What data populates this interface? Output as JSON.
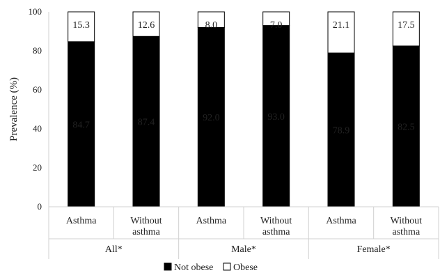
{
  "chart_data": {
    "type": "bar",
    "stacked": true,
    "ylabel": "Prevalence (%)",
    "ylim": [
      0,
      100
    ],
    "yticks": [
      0,
      20,
      40,
      60,
      80,
      100
    ],
    "grid": false,
    "groups": [
      {
        "label": "All*",
        "categories": [
          [
            "Asthma"
          ],
          [
            "Without",
            "asthma"
          ]
        ]
      },
      {
        "label": "Male*",
        "categories": [
          [
            "Asthma"
          ],
          [
            "Without",
            "asthma"
          ]
        ]
      },
      {
        "label": "Female*",
        "categories": [
          [
            "Asthma"
          ],
          [
            "Without",
            "asthma"
          ]
        ]
      }
    ],
    "series": [
      {
        "name": "Not obese",
        "color": "#000000",
        "labelColor": "#ffffff",
        "values": [
          84.7,
          87.4,
          92.0,
          93.0,
          78.9,
          82.5
        ],
        "labels": [
          "84.7",
          "87.4",
          "92.0",
          "93.0",
          "78.9",
          "82.5"
        ]
      },
      {
        "name": "Obese",
        "color": "#ffffff",
        "labelColor": "#222222",
        "values": [
          15.3,
          12.6,
          8.0,
          7.0,
          21.1,
          17.5
        ],
        "labels": [
          "15.3",
          "12.6",
          "8.0",
          "7.0",
          "21.1",
          "17.5"
        ]
      }
    ],
    "legend": {
      "position": "bottom"
    }
  }
}
